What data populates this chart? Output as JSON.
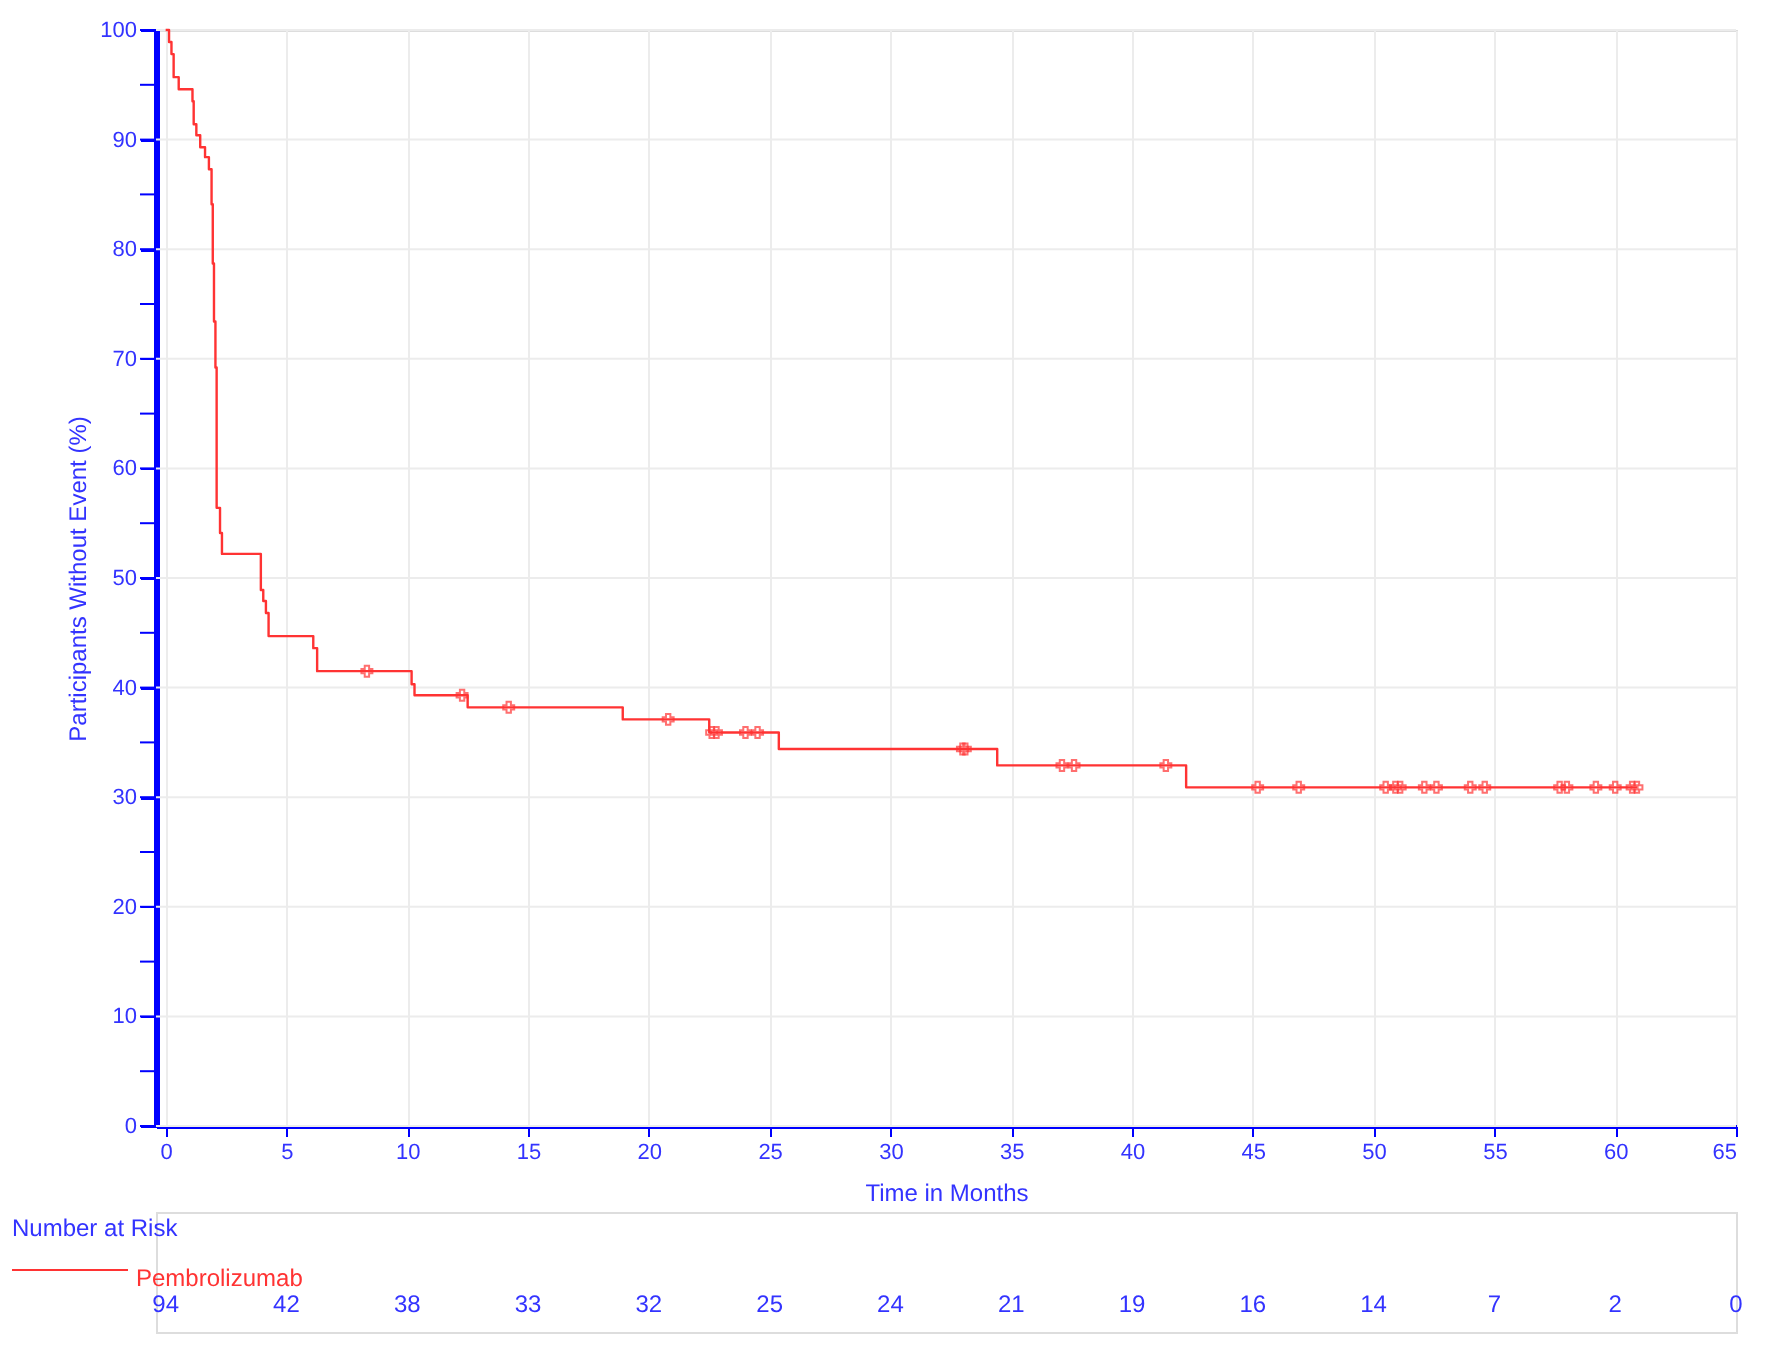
{
  "chart_data": {
    "type": "step",
    "xlabel": "Time in Months",
    "ylabel": "Participants Without Event (%)",
    "xlim": [
      -0.4,
      65
    ],
    "xticks": [
      0,
      5,
      10,
      15,
      20,
      25,
      30,
      35,
      40,
      45,
      50,
      55,
      60,
      65
    ],
    "ylim": [
      0,
      100
    ],
    "yticks": [
      0,
      {
        "value": 5,
        "label": null
      },
      10,
      {
        "value": 15,
        "label": null
      },
      20,
      {
        "value": 25,
        "label": null
      },
      30,
      {
        "value": 35,
        "label": null
      },
      40,
      {
        "value": 45,
        "label": null
      },
      50,
      {
        "value": 55,
        "label": null
      },
      60,
      {
        "value": 65,
        "label": null
      },
      70,
      {
        "value": 75,
        "label": null
      },
      80,
      {
        "value": 85,
        "label": null
      },
      90,
      {
        "value": 95,
        "label": null
      },
      100
    ],
    "grid": true,
    "series": [
      {
        "name": "Pembrolizumab",
        "color": "#ff3333",
        "line_style": "solid",
        "x": [
          0,
          0.14,
          0.24,
          0.33,
          0.54,
          1.11,
          1.16,
          1.27,
          1.43,
          1.63,
          1.79,
          1.9,
          1.95,
          2.0,
          2.06,
          2.11,
          2.25,
          2.33,
          3.94,
          4.04,
          4.15,
          4.26,
          6.11,
          6.27,
          10.18,
          10.3,
          12.5,
          18.92,
          22.5,
          25.38,
          34.42,
          42.24,
          60.9
        ],
        "values": [
          100,
          98.9,
          97.8,
          95.7,
          94.6,
          93.5,
          91.4,
          90.4,
          89.3,
          88.4,
          87.3,
          84.1,
          78.7,
          73.4,
          69.2,
          56.4,
          54.1,
          52.2,
          48.9,
          47.9,
          46.8,
          44.7,
          43.6,
          41.5,
          40.3,
          39.3,
          38.2,
          37.1,
          35.9,
          34.4,
          32.9,
          30.9,
          30.9
        ]
      },
      {
        "color": "#ff3333",
        "type": "scatter",
        "marker": "cross",
        "x": [
          8.33,
          12.27,
          14.2,
          20.8,
          22.6,
          22.8,
          24.0,
          24.5,
          32.98,
          33.1,
          37.1,
          37.6,
          41.4,
          45.2,
          46.9,
          50.5,
          50.9,
          51.1,
          52.1,
          52.6,
          54.0,
          54.6,
          57.7,
          58.0,
          59.2,
          60.0,
          60.7,
          60.9
        ],
        "values": [
          41.5,
          39.3,
          38.2,
          37.1,
          35.9,
          35.9,
          35.9,
          35.9,
          34.4,
          34.4,
          32.9,
          32.9,
          32.9,
          30.9,
          30.9,
          30.9,
          30.9,
          30.9,
          30.9,
          30.9,
          30.9,
          30.9,
          30.9,
          30.9,
          30.9,
          30.9,
          30.9,
          30.9
        ]
      }
    ],
    "legend": "bottom left",
    "annotations": [
      "Number at Risk",
      "94",
      "42",
      "38",
      "33",
      "32",
      "25",
      "24",
      "21",
      "19",
      "16",
      "14",
      "7",
      "2",
      "0"
    ]
  }
}
